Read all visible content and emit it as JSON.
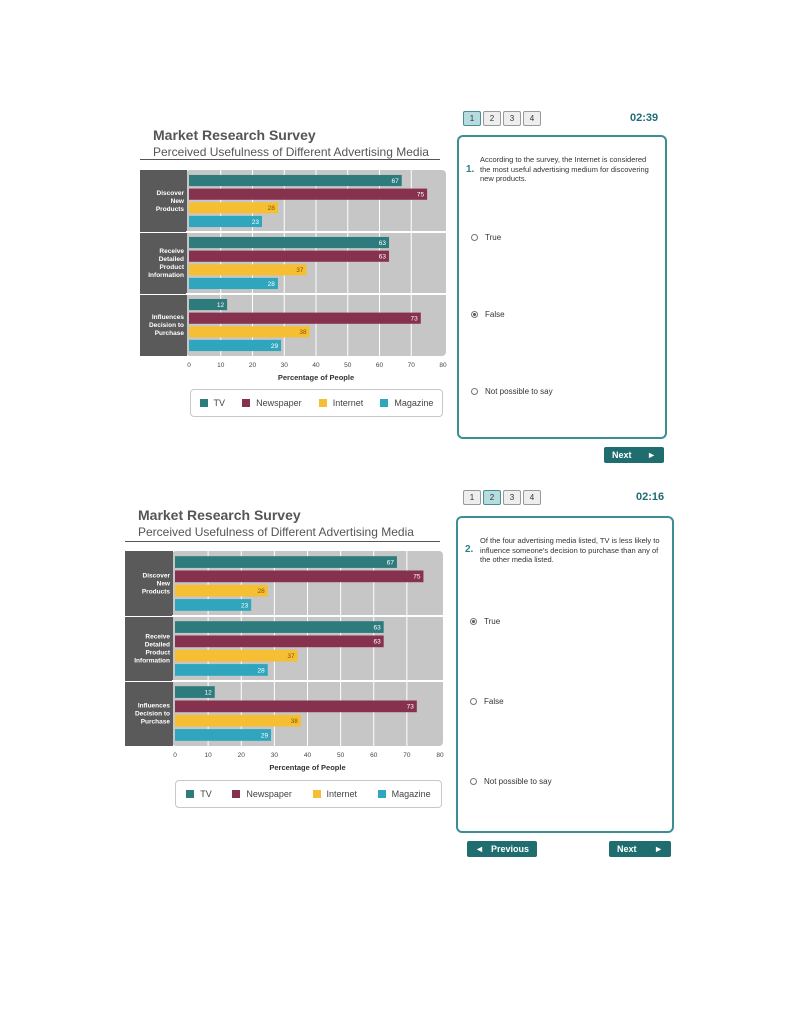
{
  "colors": {
    "tv": "#2e7b7d",
    "newspaper": "#86314e",
    "internet": "#f6bf33",
    "magazine": "#2fa6bd",
    "accent": "#3b8e93"
  },
  "chart_data": [
    {
      "type": "bar",
      "orientation": "horizontal",
      "title": "Market Research Survey",
      "subtitle": "Perceived Usefulness of Different Advertising Media",
      "xlabel": "Percentage of People",
      "xlim": [
        0,
        80
      ],
      "xticks": [
        "0",
        "10",
        "20",
        "30",
        "40",
        "50",
        "60",
        "70",
        "80"
      ],
      "grid": true,
      "categories": [
        "Discover New Products",
        "Receive Detailed Product Information",
        "Influences Decision to Purchase"
      ],
      "category_lines": [
        [
          "Discover",
          "New",
          "Products"
        ],
        [
          "Receive",
          "Detailed",
          "Product",
          "Information"
        ],
        [
          "Influences",
          "Decision to",
          "Purchase"
        ]
      ],
      "series": [
        {
          "name": "TV",
          "color": "#2e7b7d",
          "values": [
            67,
            63,
            12
          ]
        },
        {
          "name": "Newspaper",
          "color": "#86314e",
          "values": [
            75,
            63,
            73
          ]
        },
        {
          "name": "Internet",
          "color": "#f6bf33",
          "values": [
            28,
            37,
            38
          ]
        },
        {
          "name": "Magazine",
          "color": "#2fa6bd",
          "values": [
            23,
            28,
            29
          ]
        }
      ],
      "legend": [
        "TV",
        "Newspaper",
        "Internet",
        "Magazine"
      ],
      "legend_position": "bottom"
    },
    {
      "type": "bar",
      "orientation": "horizontal",
      "title": "Market Research Survey",
      "subtitle": "Perceived Usefulness of Different Advertising Media",
      "xlabel": "Percentage of People",
      "xlim": [
        0,
        80
      ],
      "xticks": [
        "0",
        "10",
        "20",
        "30",
        "40",
        "50",
        "60",
        "70",
        "80"
      ],
      "grid": true,
      "categories": [
        "Discover New Products",
        "Receive Detailed Product Information",
        "Influences Decision to Purchase"
      ],
      "category_lines": [
        [
          "Discover",
          "New",
          "Products"
        ],
        [
          "Receive",
          "Detailed",
          "Product",
          "Information"
        ],
        [
          "Influences",
          "Decision to",
          "Purchase"
        ]
      ],
      "series": [
        {
          "name": "TV",
          "color": "#2e7b7d",
          "values": [
            67,
            63,
            12
          ]
        },
        {
          "name": "Newspaper",
          "color": "#86314e",
          "values": [
            75,
            63,
            73
          ]
        },
        {
          "name": "Internet",
          "color": "#f6bf33",
          "values": [
            28,
            37,
            38
          ]
        },
        {
          "name": "Magazine",
          "color": "#2fa6bd",
          "values": [
            23,
            28,
            29
          ]
        }
      ],
      "legend": [
        "TV",
        "Newspaper",
        "Internet",
        "Magazine"
      ],
      "legend_position": "bottom"
    }
  ],
  "questions": [
    {
      "pages": [
        "1",
        "2",
        "3",
        "4"
      ],
      "active_page": "1",
      "timer": "02:39",
      "number": "1.",
      "text": "According to the survey, the Internet is considered the most useful advertising medium for discovering new products.",
      "options": [
        {
          "label": "True",
          "selected": false
        },
        {
          "label": "False",
          "selected": true
        },
        {
          "label": "Not possible to say",
          "selected": false
        }
      ],
      "next_label": "Next",
      "next_icon": "play-right-icon"
    },
    {
      "pages": [
        "1",
        "2",
        "3",
        "4"
      ],
      "active_page": "2",
      "timer": "02:16",
      "number": "2.",
      "text": "Of the four advertising media listed, TV is less likely to influence someone's decision to purchase than any of the other media listed.",
      "options": [
        {
          "label": "True",
          "selected": true
        },
        {
          "label": "False",
          "selected": false
        },
        {
          "label": "Not possible to say",
          "selected": false
        }
      ],
      "previous_label": "Previous",
      "previous_icon": "play-left-icon",
      "next_label": "Next",
      "next_icon": "play-right-icon"
    }
  ]
}
